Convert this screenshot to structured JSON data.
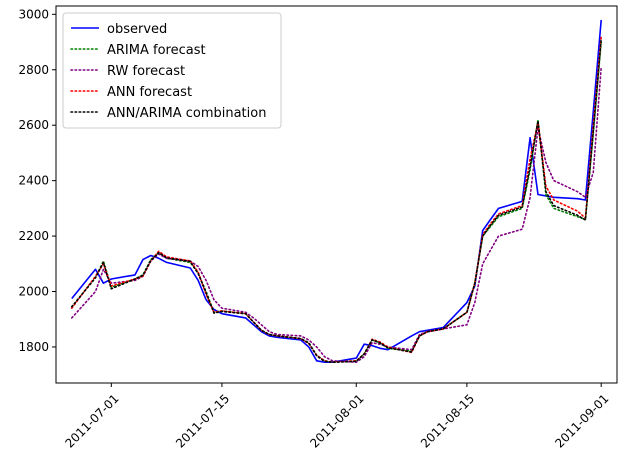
{
  "chart_data": {
    "type": "line",
    "title": "",
    "xlabel": "",
    "ylabel": "",
    "x_start": "2011-06-26",
    "x": [
      "2011-06-26",
      "2011-06-29",
      "2011-06-30",
      "2011-07-01",
      "2011-07-04",
      "2011-07-05",
      "2011-07-06",
      "2011-07-07",
      "2011-07-08",
      "2011-07-11",
      "2011-07-12",
      "2011-07-13",
      "2011-07-14",
      "2011-07-15",
      "2011-07-18",
      "2011-07-19",
      "2011-07-20",
      "2011-07-21",
      "2011-07-22",
      "2011-07-25",
      "2011-07-26",
      "2011-07-27",
      "2011-07-28",
      "2011-07-29",
      "2011-08-01",
      "2011-08-02",
      "2011-08-03",
      "2011-08-04",
      "2011-08-05",
      "2011-08-08",
      "2011-08-09",
      "2011-08-10",
      "2011-08-11",
      "2011-08-12",
      "2011-08-15",
      "2011-08-16",
      "2011-08-17",
      "2011-08-18",
      "2011-08-19",
      "2011-08-22",
      "2011-08-23",
      "2011-08-24",
      "2011-08-25",
      "2011-08-26",
      "2011-08-29",
      "2011-08-30",
      "2011-08-31",
      "2011-09-01"
    ],
    "xlim": [
      "2011-06-24",
      "2011-09-03"
    ],
    "ylim": [
      1670,
      3030
    ],
    "x_ticks": [
      "2011-07-01",
      "2011-07-15",
      "2011-08-01",
      "2011-08-15",
      "2011-09-01"
    ],
    "y_ticks": [
      1800,
      2000,
      2200,
      2400,
      2600,
      2800,
      3000
    ],
    "legend_position": "upper left",
    "series": [
      {
        "name": "observed",
        "color": "#0000ff",
        "style": "solid",
        "values": [
          1975,
          2080,
          2030,
          2045,
          2060,
          2115,
          2130,
          2120,
          2105,
          2085,
          2040,
          1970,
          1935,
          1920,
          1905,
          1880,
          1855,
          1840,
          1835,
          1825,
          1800,
          1750,
          1745,
          1745,
          1760,
          1810,
          1805,
          1795,
          1790,
          1840,
          1855,
          1860,
          1865,
          1870,
          1960,
          2020,
          2220,
          2260,
          2300,
          2325,
          2555,
          2350,
          2345,
          2340,
          2335,
          2330,
          2650,
          2980
        ]
      },
      {
        "name": "ARIMA forecast",
        "color": "#008000",
        "style": "dotted",
        "values": [
          1945,
          2050,
          2110,
          2015,
          2045,
          2060,
          2115,
          2140,
          2120,
          2105,
          2065,
          2000,
          1925,
          1930,
          1920,
          1890,
          1860,
          1845,
          1840,
          1830,
          1815,
          1770,
          1750,
          1745,
          1750,
          1775,
          1825,
          1815,
          1795,
          1785,
          1840,
          1855,
          1860,
          1865,
          1925,
          2030,
          2200,
          2235,
          2270,
          2300,
          2440,
          2620,
          2350,
          2300,
          2270,
          2260,
          2570,
          2900
        ]
      },
      {
        "name": "RW forecast",
        "color": "#800080",
        "style": "dotted",
        "values": [
          1905,
          2000,
          2080,
          2030,
          2040,
          2055,
          2110,
          2135,
          2120,
          2110,
          2090,
          2040,
          1970,
          1940,
          1925,
          1905,
          1880,
          1855,
          1845,
          1840,
          1825,
          1800,
          1765,
          1750,
          1745,
          1765,
          1815,
          1810,
          1800,
          1790,
          1845,
          1855,
          1860,
          1865,
          1880,
          1960,
          2100,
          2150,
          2200,
          2225,
          2340,
          2590,
          2465,
          2400,
          2360,
          2340,
          2430,
          2810
        ]
      },
      {
        "name": "ANN forecast",
        "color": "#ff0000",
        "style": "dotted",
        "values": [
          1940,
          2055,
          2100,
          2020,
          2045,
          2055,
          2110,
          2145,
          2125,
          2110,
          2070,
          1990,
          1925,
          1930,
          1920,
          1890,
          1860,
          1845,
          1840,
          1830,
          1812,
          1770,
          1750,
          1745,
          1750,
          1775,
          1828,
          1818,
          1800,
          1780,
          1840,
          1855,
          1860,
          1865,
          1925,
          2030,
          2205,
          2245,
          2280,
          2310,
          2480,
          2610,
          2380,
          2330,
          2290,
          2265,
          2600,
          2920
        ]
      },
      {
        "name": "ANN/ARIMA combination",
        "color": "#000000",
        "style": "dotted",
        "values": [
          1945,
          2050,
          2105,
          2010,
          2045,
          2058,
          2112,
          2140,
          2122,
          2108,
          2065,
          1995,
          1922,
          1928,
          1920,
          1890,
          1860,
          1845,
          1840,
          1830,
          1814,
          1768,
          1748,
          1745,
          1748,
          1775,
          1826,
          1815,
          1797,
          1782,
          1840,
          1855,
          1860,
          1865,
          1925,
          2030,
          2200,
          2240,
          2275,
          2305,
          2450,
          2615,
          2360,
          2310,
          2275,
          2258,
          2580,
          2910
        ]
      }
    ]
  }
}
